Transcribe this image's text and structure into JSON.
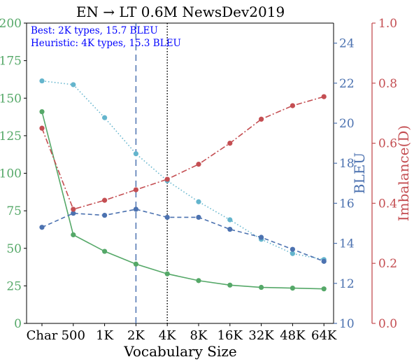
{
  "chart_data": {
    "type": "line",
    "title": "EN → LT 0.6M NewsDev2019",
    "xlabel": "Vocabulary Size",
    "categories": [
      "Char",
      "500",
      "1K",
      "2K",
      "4K",
      "8K",
      "16K",
      "32K",
      "48K",
      "64K"
    ],
    "axes": {
      "left": {
        "label": "",
        "ylim": [
          0,
          200
        ],
        "ticks": [
          "0",
          "25",
          "50",
          "75",
          "100",
          "125",
          "150",
          "175",
          "200"
        ],
        "color": "#55a868"
      },
      "bleu": {
        "label": "BLEU",
        "ylim": [
          10,
          25
        ],
        "ticks": [
          "10",
          "12",
          "14",
          "16",
          "18",
          "20",
          "22",
          "24"
        ],
        "color": "#4c72b0"
      },
      "imbalance": {
        "label": "Imbalance(D)",
        "ylim": [
          0,
          1
        ],
        "ticks": [
          "0.0",
          "0.2",
          "0.4",
          "0.6",
          "0.8",
          "1.0"
        ],
        "color": "#c44e52"
      }
    },
    "series": [
      {
        "axis": "left",
        "color": "#55a868",
        "style": "solid",
        "values": [
          141,
          59,
          48,
          39.5,
          33,
          28.5,
          25.5,
          24,
          23.5,
          23
        ]
      },
      {
        "axis": "left",
        "color": "#64b5cd",
        "style": "dotted",
        "values": [
          161.5,
          159,
          137,
          113,
          95,
          81,
          69,
          56,
          46.5,
          42.5
        ]
      },
      {
        "axis": "bleu",
        "color": "#4c72b0",
        "style": "dashed",
        "values": [
          14.8,
          15.5,
          15.4,
          15.7,
          15.3,
          15.3,
          14.7,
          14.3,
          13.7,
          13.1
        ]
      },
      {
        "axis": "imbalance",
        "color": "#c44e52",
        "style": "dashdot",
        "values": [
          0.65,
          0.38,
          0.41,
          0.445,
          0.48,
          0.53,
          0.6,
          0.68,
          0.725,
          0.755
        ]
      }
    ],
    "vlines": [
      {
        "at": "2K",
        "color": "#4c72b0",
        "style": "dashed"
      },
      {
        "at": "4K",
        "color": "#000000",
        "style": "dotted"
      }
    ],
    "annotations": {
      "best": "Best: 2K types, 15.7 BLEU",
      "heuristic": "Heuristic: 4K types, 15.3 BLEU",
      "color": "#0000ff"
    }
  }
}
